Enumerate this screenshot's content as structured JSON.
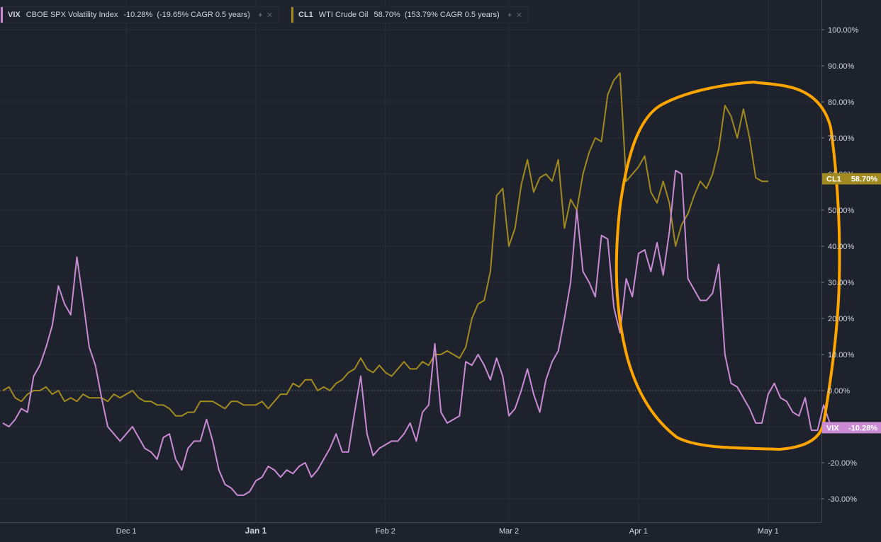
{
  "legend": [
    {
      "symbol": "VIX",
      "name": "CBOE SPX Volatility Index",
      "value": "-10.28%",
      "cagr": "(-19.65% CAGR 0.5 years)",
      "color": "#c98bd3"
    },
    {
      "symbol": "CL1",
      "name": "WTI Crude Oil",
      "value": "58.70%",
      "cagr": "(153.79% CAGR 0.5 years)",
      "color": "#a18a1f"
    }
  ],
  "price_tags": [
    {
      "symbol": "CL1",
      "value": "58.70%",
      "color": "#a18a1f",
      "y": 58.7
    },
    {
      "symbol": "VIX",
      "value": "-10.28%",
      "color": "#c98bd3",
      "y": -10.28
    }
  ],
  "annotation_color": "#ffa500",
  "chart_data": {
    "type": "line",
    "ylim": [
      -36,
      108
    ],
    "y_ticks": [
      {
        "v": 100,
        "label": "100.00%"
      },
      {
        "v": 90,
        "label": "90.00%"
      },
      {
        "v": 80,
        "label": "80.00%"
      },
      {
        "v": 70,
        "label": "70.00%"
      },
      {
        "v": 60,
        "label": "60.00%"
      },
      {
        "v": 50,
        "label": "50.00%"
      },
      {
        "v": 40,
        "label": "40.00%"
      },
      {
        "v": 30,
        "label": "30.00%"
      },
      {
        "v": 20,
        "label": "20.00%"
      },
      {
        "v": 10,
        "label": "10.00%"
      },
      {
        "v": 0,
        "label": "0.00%"
      },
      {
        "v": -20,
        "label": "-20.00%"
      },
      {
        "v": -30,
        "label": "-30.00%"
      }
    ],
    "x_ticks": [
      {
        "i": 20,
        "label": "Dec 1",
        "bold": false
      },
      {
        "i": 41,
        "label": "Jan 1",
        "bold": true
      },
      {
        "i": 62,
        "label": "Feb 2",
        "bold": false
      },
      {
        "i": 82,
        "label": "Mar 2",
        "bold": false
      },
      {
        "i": 103,
        "label": "Apr 1",
        "bold": false
      },
      {
        "i": 124,
        "label": "May 1",
        "bold": false
      }
    ],
    "x_index_range": [
      0,
      130
    ],
    "series": [
      {
        "name": "VIX",
        "color": "#c98bd3",
        "values": [
          -9,
          -10,
          -8,
          -5,
          -6,
          4,
          7,
          12,
          18,
          29,
          24,
          21,
          37,
          25,
          12,
          7,
          -2,
          -10,
          -12,
          -14,
          -12,
          -10,
          -13,
          -16,
          -17,
          -19,
          -13,
          -12,
          -19,
          -22,
          -16,
          -14,
          -14,
          -8,
          -14,
          -22,
          -26,
          -27,
          -29,
          -29,
          -28,
          -25,
          -24,
          -21,
          -22,
          -24,
          -22,
          -23,
          -21,
          -20,
          -24,
          -22,
          -19,
          -16,
          -12,
          -17,
          -17,
          -6,
          4,
          -12,
          -18,
          -16,
          -15,
          -14,
          -14,
          -12,
          -9,
          -14,
          -6,
          -4,
          13,
          -6,
          -9,
          -8,
          -7,
          8,
          7,
          10,
          7,
          3,
          9,
          4,
          -7,
          -5,
          0,
          6,
          -1,
          -6,
          3,
          8,
          11,
          20,
          30,
          50,
          33,
          30,
          26,
          43,
          42,
          23,
          16,
          31,
          26,
          38,
          39,
          33,
          41,
          32,
          44,
          61,
          60,
          31,
          28,
          25,
          25,
          27,
          35,
          10,
          2,
          1,
          -2,
          -5,
          -9,
          -9,
          -1,
          2,
          -2,
          -3,
          -6,
          -7,
          -2,
          -11,
          -11,
          -4,
          -9,
          -9,
          -10,
          -10
        ]
      },
      {
        "name": "CL1",
        "color": "#a18a1f",
        "values": [
          0,
          1,
          -2,
          -3,
          -1,
          0,
          0,
          1,
          -1,
          0,
          -3,
          -2,
          -3,
          -1,
          -2,
          -2,
          -2,
          -3,
          -1,
          -2,
          -1,
          0,
          -2,
          -3,
          -3,
          -4,
          -4,
          -5,
          -7,
          -7,
          -6,
          -6,
          -3,
          -3,
          -3,
          -4,
          -5,
          -3,
          -3,
          -4,
          -4,
          -4,
          -3,
          -5,
          -3,
          -1,
          -1,
          2,
          1,
          3,
          3,
          0,
          1,
          0,
          2,
          3,
          5,
          6,
          9,
          6,
          5,
          7,
          5,
          4,
          6,
          8,
          6,
          6,
          8,
          7,
          10,
          10,
          11,
          10,
          9,
          12,
          20,
          24,
          25,
          33,
          54,
          56,
          40,
          45,
          57,
          64,
          55,
          59,
          60,
          58,
          64,
          45,
          53,
          50,
          60,
          66,
          70,
          69,
          82,
          86,
          88,
          58,
          60,
          62,
          65,
          55,
          52,
          58,
          52,
          40,
          46,
          49,
          54,
          58,
          56,
          60,
          67,
          79,
          76,
          70,
          78,
          70,
          59,
          58,
          58
        ]
      }
    ]
  }
}
